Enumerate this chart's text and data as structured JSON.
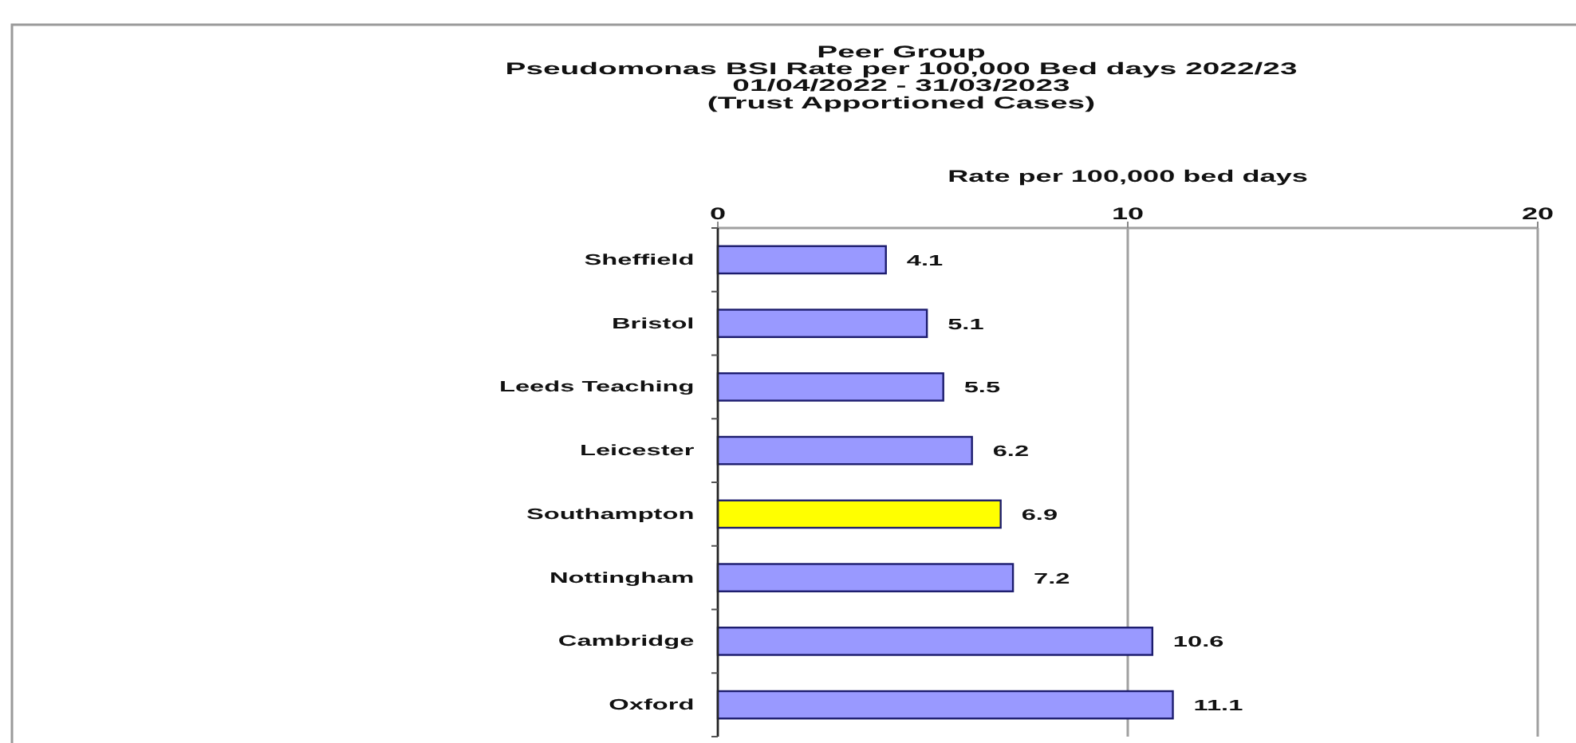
{
  "chart_data": {
    "type": "bar",
    "orientation": "horizontal",
    "title": "Peer Group\nPseudomonas BSI Rate per 100,000 Bed days 2022/23",
    "subtitle": "01/04/2022 - 31/03/2023\n(Trust Apportioned Cases)",
    "xlabel": "Rate per 100,000 bed days",
    "categories": [
      "Sheffield",
      "Bristol",
      "Leeds Teaching",
      "Leicester",
      "Southampton",
      "Nottingham",
      "Cambridge",
      "Oxford"
    ],
    "values": [
      4.1,
      5.1,
      5.5,
      6.2,
      6.9,
      7.2,
      10.6,
      11.1
    ],
    "colors": [
      "#9999ff",
      "#9999ff",
      "#9999ff",
      "#9999ff",
      "#ffff00",
      "#9999ff",
      "#9999ff",
      "#9999ff"
    ],
    "xlim": [
      0,
      20
    ],
    "xticks": [
      0,
      10,
      20
    ],
    "grid": "x",
    "data_labels": true
  }
}
